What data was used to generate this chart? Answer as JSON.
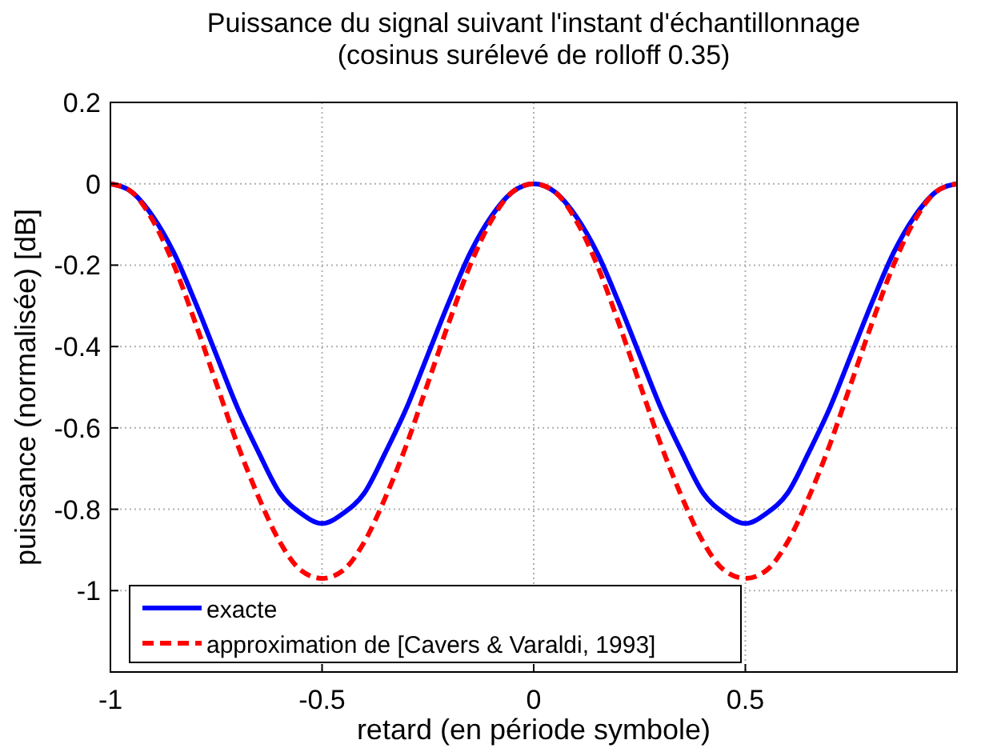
{
  "chart_data": {
    "type": "line",
    "title": "Puissance du signal suivant l'instant d'échantillonnage\n(cosinus surélevé de rolloff 0.35)",
    "xlabel": "retard (en période symbole)",
    "ylabel": "puissance (normalisée) [dB]",
    "x": [
      -1,
      -0.95,
      -0.9,
      -0.85,
      -0.8,
      -0.75,
      -0.7,
      -0.65,
      -0.6,
      -0.55,
      -0.5,
      -0.45,
      -0.4,
      -0.35,
      -0.3,
      -0.25,
      -0.2,
      -0.15,
      -0.1,
      -0.05,
      0,
      0.05,
      0.1,
      0.15,
      0.2,
      0.25,
      0.3,
      0.35,
      0.4,
      0.45,
      0.5,
      0.55,
      0.6,
      0.65,
      0.7,
      0.75,
      0.8,
      0.85,
      0.9,
      0.95,
      1
    ],
    "series": [
      {
        "name": "exacte",
        "color": "#0000ff",
        "line_style": "solid",
        "values": [
          0,
          -0.02,
          -0.08,
          -0.17,
          -0.29,
          -0.42,
          -0.55,
          -0.66,
          -0.76,
          -0.81,
          -0.835,
          -0.81,
          -0.76,
          -0.66,
          -0.55,
          -0.42,
          -0.29,
          -0.17,
          -0.08,
          -0.02,
          0,
          -0.02,
          -0.08,
          -0.17,
          -0.29,
          -0.42,
          -0.55,
          -0.66,
          -0.76,
          -0.81,
          -0.835,
          -0.81,
          -0.76,
          -0.66,
          -0.55,
          -0.42,
          -0.29,
          -0.17,
          -0.08,
          -0.02,
          0
        ]
      },
      {
        "name": "approximation de [Cavers & Varaldi, 1993]",
        "color": "#ff0000",
        "line_style": "dashed",
        "values": [
          0,
          -0.02,
          -0.09,
          -0.2,
          -0.34,
          -0.49,
          -0.64,
          -0.77,
          -0.88,
          -0.95,
          -0.97,
          -0.95,
          -0.88,
          -0.77,
          -0.64,
          -0.49,
          -0.34,
          -0.2,
          -0.09,
          -0.02,
          0,
          -0.02,
          -0.09,
          -0.2,
          -0.34,
          -0.49,
          -0.64,
          -0.77,
          -0.88,
          -0.95,
          -0.97,
          -0.95,
          -0.88,
          -0.77,
          -0.64,
          -0.49,
          -0.34,
          -0.2,
          -0.09,
          -0.02,
          0
        ]
      }
    ],
    "xlim": [
      -1,
      1
    ],
    "xticks": [
      -1,
      -0.5,
      0,
      0.5,
      {
        "value": 1,
        "label": null
      }
    ],
    "ylim": [
      -1.2,
      0.2
    ],
    "yticks": [
      0.2,
      0,
      -0.2,
      -0.4,
      -0.6,
      -0.8,
      -1,
      {
        "value": -1.2,
        "label": null
      }
    ],
    "grid": true,
    "legend": "bottom left",
    "marker": "none"
  }
}
